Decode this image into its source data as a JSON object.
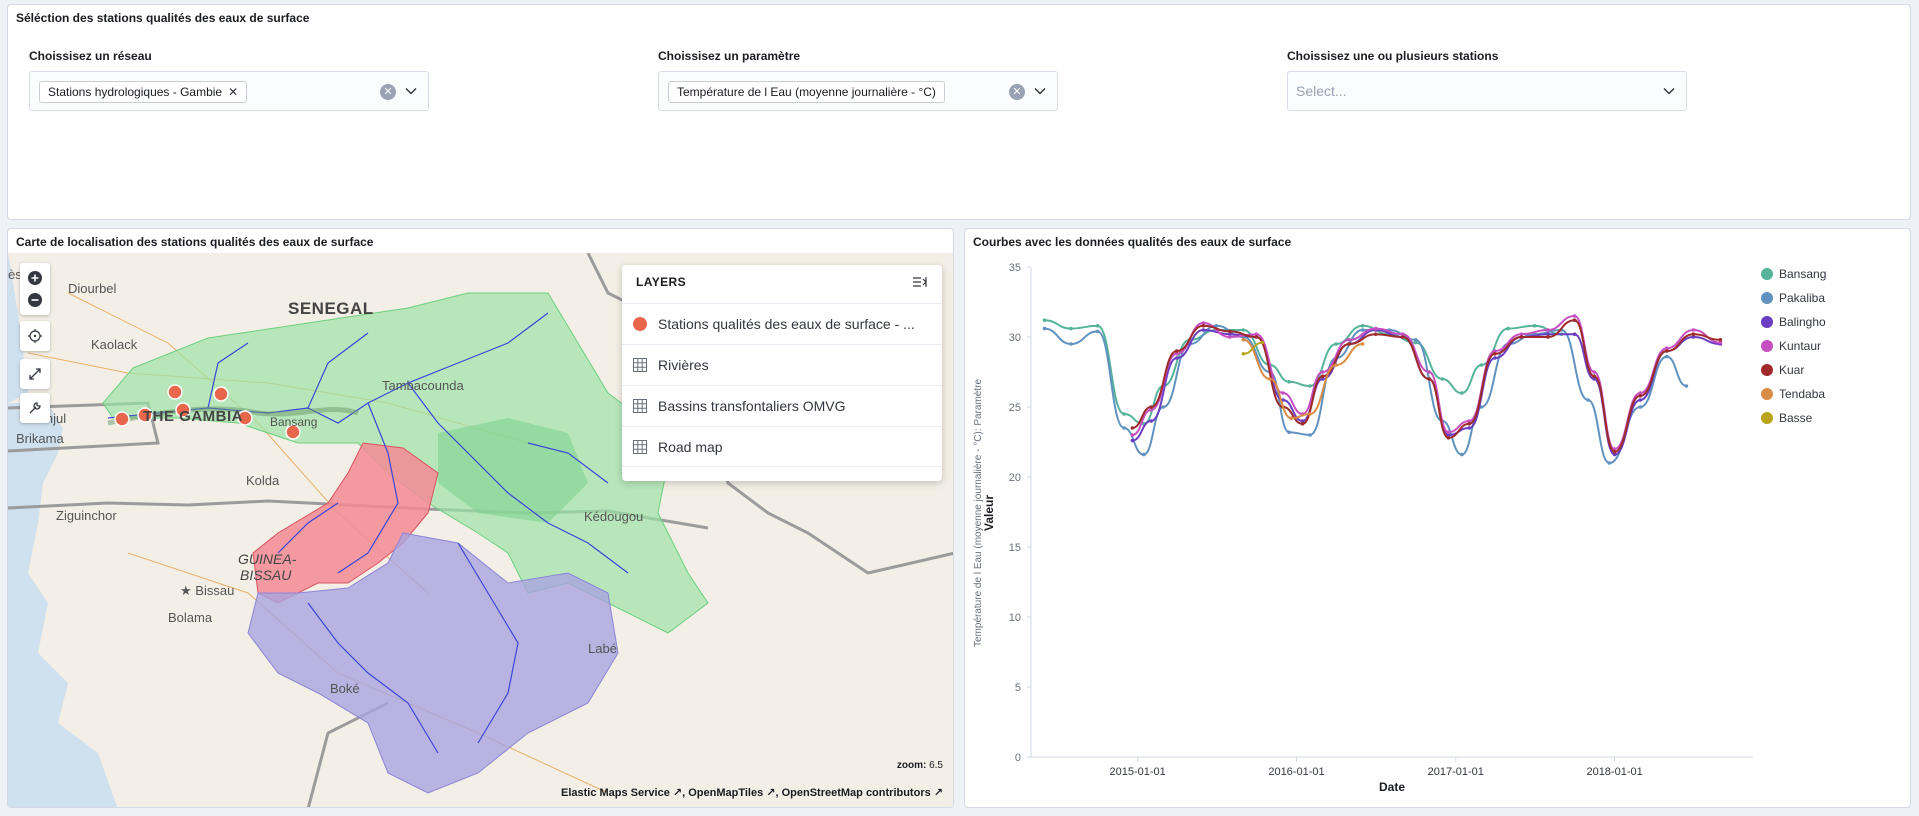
{
  "selection_panel": {
    "title": "Séléction des stations qualités des eaux de surface",
    "network": {
      "label": "Choissisez un réseau",
      "value": "Stations hydrologiques - Gambie"
    },
    "parameter": {
      "label": "Choissisez un paramètre",
      "value": "Température de l Eau (moyenne journalière - °C)"
    },
    "stations": {
      "label": "Choissisez une ou plusieurs stations",
      "placeholder": "Select..."
    }
  },
  "map_panel": {
    "title": "Carte de localisation des stations qualités des eaux de surface",
    "places": [
      "Diourbel",
      "SENEGAL",
      "Kaolack",
      "Tambacounda",
      "Banjul",
      "Brikama",
      "THE GAMBIA",
      "Bansang",
      "Kolda",
      "Ziguinchor",
      "Kédougou",
      "GUINEA-",
      "BISSAU",
      "Bissau",
      "Bolama",
      "Labé",
      "Boké",
      "ès"
    ],
    "layers": {
      "header": "LAYERS",
      "items": [
        {
          "label": "Stations qualités des eaux de surface - ...",
          "icon": "circle-marker-icon",
          "color": "#e7664c"
        },
        {
          "label": "Rivières",
          "icon": "grid-icon"
        },
        {
          "label": "Bassins transfontaliers OMVG",
          "icon": "grid-icon"
        },
        {
          "label": "Road map",
          "icon": "grid-icon"
        }
      ]
    },
    "zoom_label": "zoom:",
    "zoom_value": "6.5",
    "attribution": [
      "Elastic Maps Service",
      "OpenMapTiles",
      "OpenStreetMap contributors"
    ]
  },
  "chart_panel": {
    "title": "Courbes avec les données qualités des eaux de surface"
  },
  "chart_data": {
    "type": "line",
    "xlabel": "Date",
    "ylabel": "Valeur",
    "ylabel_secondary": "Température de l Eau (moyenne journalière - °C): Paramètre",
    "ylim": [
      0,
      35
    ],
    "yticks": [
      0,
      5,
      10,
      15,
      20,
      25,
      30,
      35
    ],
    "xticks": [
      "2015-01-01",
      "2016-01-01",
      "2017-01-01",
      "2018-01-01"
    ],
    "legend_position": "top-right",
    "series": [
      {
        "name": "Bansang",
        "color": "#54b399",
        "points": [
          [
            "2014-06-01",
            31.2
          ],
          [
            "2014-08-01",
            30.6
          ],
          [
            "2014-10-01",
            30.8
          ],
          [
            "2014-12-01",
            24.5
          ],
          [
            "2015-01-15",
            23.8
          ],
          [
            "2015-03-01",
            26.5
          ],
          [
            "2015-05-01",
            29.8
          ],
          [
            "2015-07-01",
            30.5
          ],
          [
            "2015-09-01",
            30.5
          ],
          [
            "2015-11-01",
            28.0
          ],
          [
            "2015-12-15",
            26.8
          ],
          [
            "2016-02-01",
            26.5
          ],
          [
            "2016-04-01",
            29.5
          ],
          [
            "2016-06-01",
            30.8
          ],
          [
            "2016-08-01",
            30.2
          ],
          [
            "2016-10-01",
            29.6
          ],
          [
            "2016-12-01",
            27.0
          ],
          [
            "2017-01-15",
            26.0
          ],
          [
            "2017-03-01",
            28.0
          ],
          [
            "2017-05-01",
            30.6
          ],
          [
            "2017-07-01",
            30.8
          ],
          [
            "2017-09-01",
            30.2
          ]
        ]
      },
      {
        "name": "Pakaliba",
        "color": "#6092c0",
        "points": [
          [
            "2014-06-01",
            30.6
          ],
          [
            "2014-08-01",
            29.5
          ],
          [
            "2014-10-01",
            30.4
          ],
          [
            "2014-12-01",
            23.5
          ],
          [
            "2015-01-15",
            21.6
          ],
          [
            "2015-03-01",
            25.0
          ],
          [
            "2015-05-01",
            29.5
          ],
          [
            "2015-07-01",
            30.8
          ],
          [
            "2015-09-01",
            30.0
          ],
          [
            "2015-11-01",
            27.5
          ],
          [
            "2015-12-15",
            23.2
          ],
          [
            "2016-02-01",
            23.0
          ],
          [
            "2016-04-01",
            28.5
          ],
          [
            "2016-06-01",
            30.5
          ],
          [
            "2016-08-01",
            30.5
          ],
          [
            "2016-10-01",
            29.8
          ],
          [
            "2016-12-01",
            24.0
          ],
          [
            "2017-01-15",
            21.6
          ],
          [
            "2017-03-01",
            25.0
          ],
          [
            "2017-05-01",
            29.5
          ],
          [
            "2017-07-01",
            30.2
          ],
          [
            "2017-09-01",
            30.5
          ],
          [
            "2017-11-01",
            25.5
          ],
          [
            "2017-12-20",
            21.0
          ],
          [
            "2018-03-01",
            25.0
          ],
          [
            "2018-05-01",
            28.6
          ],
          [
            "2018-06-15",
            26.5
          ]
        ]
      },
      {
        "name": "Balingho",
        "color": "#6a3ec0",
        "points": [
          [
            "2014-12-20",
            22.6
          ],
          [
            "2015-02-01",
            24.0
          ],
          [
            "2015-04-01",
            28.5
          ],
          [
            "2015-06-01",
            30.5
          ],
          [
            "2015-08-01",
            30.2
          ],
          [
            "2015-10-01",
            30.0
          ],
          [
            "2015-12-01",
            25.5
          ],
          [
            "2016-01-15",
            24.0
          ],
          [
            "2016-03-01",
            27.0
          ],
          [
            "2016-05-01",
            29.5
          ],
          [
            "2016-07-01",
            30.5
          ],
          [
            "2016-09-01",
            30.0
          ],
          [
            "2016-11-01",
            27.0
          ],
          [
            "2016-12-15",
            23.0
          ],
          [
            "2017-02-01",
            23.5
          ],
          [
            "2017-04-01",
            28.5
          ],
          [
            "2017-06-01",
            30.0
          ],
          [
            "2017-08-01",
            30.2
          ],
          [
            "2017-10-01",
            30.2
          ],
          [
            "2017-11-15",
            27.0
          ],
          [
            "2018-01-01",
            21.6
          ],
          [
            "2018-03-01",
            25.5
          ],
          [
            "2018-05-01",
            29.0
          ],
          [
            "2018-07-01",
            30.0
          ],
          [
            "2018-09-01",
            29.5
          ]
        ]
      },
      {
        "name": "Kuntaur",
        "color": "#c74ec0",
        "points": [
          [
            "2014-12-20",
            23.0
          ],
          [
            "2015-02-01",
            24.8
          ],
          [
            "2015-04-01",
            28.8
          ],
          [
            "2015-06-01",
            31.0
          ],
          [
            "2015-08-01",
            30.0
          ],
          [
            "2015-10-01",
            30.2
          ],
          [
            "2015-12-01",
            26.0
          ],
          [
            "2016-01-15",
            24.5
          ],
          [
            "2016-03-01",
            27.5
          ],
          [
            "2016-05-01",
            29.8
          ],
          [
            "2016-07-01",
            30.6
          ],
          [
            "2016-09-01",
            30.2
          ],
          [
            "2016-11-01",
            27.5
          ],
          [
            "2016-12-15",
            23.2
          ],
          [
            "2017-02-01",
            24.0
          ],
          [
            "2017-04-01",
            29.0
          ],
          [
            "2017-06-01",
            30.2
          ],
          [
            "2017-08-01",
            30.5
          ],
          [
            "2017-10-01",
            31.5
          ],
          [
            "2017-11-15",
            27.5
          ],
          [
            "2018-01-01",
            22.0
          ],
          [
            "2018-03-01",
            26.0
          ],
          [
            "2018-05-01",
            29.2
          ],
          [
            "2018-07-01",
            30.5
          ],
          [
            "2018-09-01",
            29.6
          ]
        ]
      },
      {
        "name": "Kuar",
        "color": "#9e2a2a",
        "points": [
          [
            "2014-12-20",
            23.5
          ],
          [
            "2015-02-01",
            25.0
          ],
          [
            "2015-04-01",
            29.0
          ],
          [
            "2015-06-01",
            30.8
          ],
          [
            "2015-08-01",
            30.4
          ],
          [
            "2015-10-01",
            30.0
          ],
          [
            "2015-12-01",
            25.0
          ],
          [
            "2016-01-15",
            23.8
          ],
          [
            "2016-03-01",
            27.2
          ],
          [
            "2016-05-01",
            29.5
          ],
          [
            "2016-07-01",
            30.2
          ],
          [
            "2016-09-01",
            30.0
          ],
          [
            "2016-11-01",
            27.0
          ],
          [
            "2016-12-15",
            22.8
          ],
          [
            "2017-02-01",
            23.8
          ],
          [
            "2017-04-01",
            28.8
          ],
          [
            "2017-06-01",
            30.0
          ],
          [
            "2017-08-01",
            30.0
          ],
          [
            "2017-10-01",
            31.2
          ],
          [
            "2017-11-15",
            27.2
          ],
          [
            "2018-01-01",
            21.8
          ],
          [
            "2018-03-01",
            25.8
          ],
          [
            "2018-05-01",
            29.0
          ],
          [
            "2018-07-01",
            30.2
          ],
          [
            "2018-09-01",
            29.8
          ]
        ]
      },
      {
        "name": "Tendaba",
        "color": "#da8b45",
        "points": [
          [
            "2015-09-01",
            29.8
          ],
          [
            "2015-11-01",
            27.0
          ],
          [
            "2015-12-20",
            24.2
          ],
          [
            "2016-02-01",
            24.5
          ],
          [
            "2016-04-01",
            28.0
          ],
          [
            "2016-06-01",
            29.5
          ]
        ]
      },
      {
        "name": "Basse",
        "color": "#b9a31a",
        "points": [
          [
            "2015-09-01",
            28.8
          ],
          [
            "2015-10-15",
            29.6
          ]
        ]
      }
    ]
  }
}
